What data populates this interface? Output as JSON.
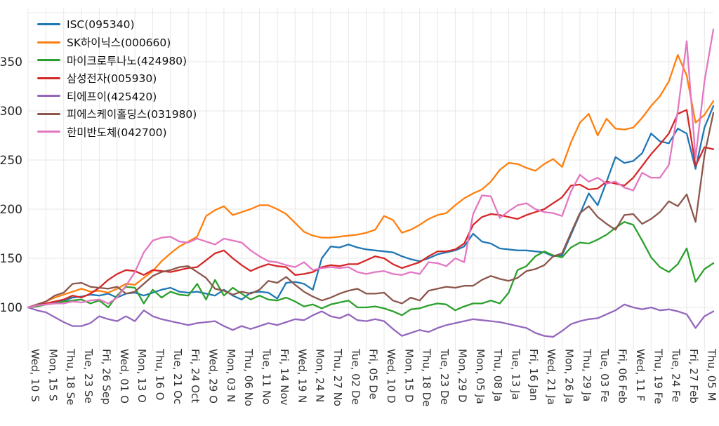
{
  "figure": {
    "background": "#ffffff",
    "description": "Indexed stock performance comparison line chart (base=100)"
  },
  "chart_data": {
    "type": "line",
    "title": "",
    "xlabel": "",
    "ylabel": "",
    "grid": true,
    "legend_position": "upper-left",
    "y_ticks": [
      100,
      150,
      200,
      250,
      300,
      350
    ],
    "ylim": [
      56,
      400
    ],
    "tick_every_n_points": 2,
    "x_tick_labels": [
      "Wed, 10 S",
      "Mon, 15 S",
      "Thu, 18 Se",
      "Tue, 23 Se",
      "Fri, 26 Sep",
      "Wed, 01 O",
      "Mon, 13 O",
      "Thu, 16 O",
      "Tue, 21 Oc",
      "Fri, 24 Oct",
      "Wed, 29 O",
      "Mon, 03 N",
      "Thu, 06 No",
      "Tue, 11 No",
      "Fri, 14 Nov",
      "Wed, 19 N",
      "Mon, 24 N",
      "Thu, 27 No",
      "Tue, 02 De",
      "Fri, 05 De",
      "Wed, 10 D",
      "Mon, 15 D",
      "Thu, 18 De",
      "Tue, 23 De",
      "Mon, 29 D",
      "Mon, 05 Ja",
      "Thu, 08 Ja",
      "Tue, 13 Ja",
      "Fri, 16 Jan",
      "Wed, 21 Ja",
      "Mon, 26 Ja",
      "Thu, 29 Ja",
      "Tue, 03 Fe",
      "Fri, 06 Feb",
      "Wed, 11 F",
      "Thu, 19 Fe",
      "Tue, 24 Fe",
      "Fri, 27 Feb",
      "Thu, 05 M"
    ],
    "series": [
      {
        "name": "ISC(095340)",
        "color": "#1f77b4",
        "values": [
          100,
          101,
          103,
          105,
          107,
          110,
          111,
          113,
          112,
          114,
          110,
          114,
          115,
          112,
          115,
          118,
          120,
          116,
          115,
          116,
          114,
          112,
          118,
          112,
          108,
          115,
          116,
          115,
          109,
          125,
          126,
          124,
          118,
          150,
          162,
          161,
          164,
          161,
          159,
          158,
          157,
          156,
          152,
          149,
          147,
          150,
          154,
          156,
          158,
          162,
          175,
          167,
          165,
          160,
          159,
          158,
          158,
          157,
          156,
          152,
          153,
          174,
          195,
          216,
          204,
          228,
          253,
          247,
          249,
          257,
          277,
          269,
          267,
          282,
          277,
          241,
          283,
          305
        ]
      },
      {
        "name": "SK하이닉스(000660)",
        "color": "#ff7f0e",
        "values": [
          100,
          103,
          106,
          110,
          113,
          116,
          119,
          116,
          117,
          115,
          119,
          124,
          123,
          130,
          137,
          147,
          155,
          162,
          167,
          172,
          193,
          199,
          203,
          194,
          197,
          200,
          204,
          204,
          200,
          195,
          186,
          177,
          173,
          171,
          171,
          172,
          173,
          174,
          176,
          179,
          193,
          189,
          176,
          179,
          184,
          190,
          194,
          196,
          204,
          211,
          216,
          220,
          228,
          240,
          247,
          246,
          242,
          239,
          246,
          251,
          243,
          268,
          288,
          297,
          275,
          292,
          282,
          281,
          283,
          293,
          305,
          315,
          330,
          357,
          336,
          288,
          296,
          310
        ]
      },
      {
        "name": "마이크로투나노(424980)",
        "color": "#2ca02c",
        "values": [
          100,
          101,
          103,
          104,
          106,
          107,
          108,
          104,
          107,
          100,
          112,
          121,
          120,
          104,
          118,
          110,
          116,
          113,
          112,
          124,
          108,
          128,
          112,
          120,
          114,
          108,
          112,
          108,
          107,
          110,
          106,
          101,
          103,
          99,
          103,
          105,
          107,
          100,
          100,
          101,
          99,
          96,
          92,
          98,
          99,
          102,
          104,
          103,
          97,
          101,
          104,
          104,
          107,
          104,
          115,
          138,
          142,
          152,
          157,
          153,
          151,
          161,
          166,
          165,
          169,
          174,
          181,
          187,
          184,
          168,
          151,
          141,
          136,
          144,
          160,
          126,
          139,
          145
        ]
      },
      {
        "name": "삼성전자(005930)",
        "color": "#d62728",
        "values": [
          100,
          102,
          104,
          106,
          108,
          112,
          110,
          114,
          120,
          128,
          134,
          138,
          137,
          133,
          138,
          137,
          136,
          138,
          140,
          141,
          148,
          155,
          158,
          150,
          143,
          137,
          141,
          144,
          142,
          141,
          133,
          134,
          136,
          141,
          143,
          142,
          144,
          144,
          148,
          152,
          150,
          144,
          140,
          143,
          146,
          152,
          157,
          157,
          159,
          165,
          184,
          192,
          195,
          194,
          192,
          190,
          194,
          197,
          200,
          206,
          212,
          224,
          225,
          220,
          221,
          228,
          226,
          224,
          232,
          244,
          256,
          266,
          277,
          297,
          301,
          244,
          263,
          261
        ]
      },
      {
        "name": "티에프이(425420)",
        "color": "#9467bd",
        "values": [
          100,
          97,
          95,
          90,
          85,
          81,
          81,
          84,
          91,
          88,
          86,
          91,
          86,
          97,
          91,
          88,
          86,
          84,
          82,
          84,
          85,
          86,
          81,
          77,
          81,
          78,
          81,
          84,
          82,
          85,
          88,
          87,
          92,
          96,
          91,
          89,
          93,
          87,
          86,
          88,
          86,
          78,
          71,
          74,
          77,
          75,
          79,
          82,
          84,
          86,
          88,
          87,
          86,
          85,
          83,
          81,
          79,
          74,
          71,
          70,
          76,
          83,
          86,
          88,
          89,
          93,
          97,
          103,
          100,
          98,
          100,
          97,
          98,
          96,
          93,
          79,
          91,
          96
        ]
      },
      {
        "name": "피에스케이홀딩스(031980)",
        "color": "#8c564b",
        "values": [
          100,
          103,
          106,
          112,
          115,
          124,
          125,
          121,
          120,
          119,
          121,
          114,
          116,
          124,
          132,
          136,
          138,
          141,
          142,
          136,
          130,
          119,
          117,
          113,
          116,
          114,
          118,
          127,
          125,
          131,
          123,
          116,
          111,
          107,
          110,
          114,
          117,
          119,
          114,
          114,
          115,
          107,
          104,
          110,
          107,
          117,
          119,
          121,
          120,
          122,
          122,
          128,
          132,
          129,
          127,
          130,
          137,
          139,
          143,
          152,
          155,
          176,
          196,
          203,
          192,
          185,
          179,
          194,
          195,
          185,
          190,
          197,
          208,
          203,
          215,
          187,
          255,
          298
        ]
      },
      {
        "name": "한미반도체(042700)",
        "color": "#e377c2",
        "values": [
          100,
          102,
          103,
          104,
          104,
          106,
          105,
          107,
          108,
          104,
          110,
          122,
          136,
          156,
          168,
          171,
          172,
          167,
          166,
          170,
          167,
          164,
          170,
          168,
          166,
          158,
          152,
          147,
          146,
          143,
          141,
          146,
          138,
          140,
          141,
          140,
          141,
          136,
          134,
          136,
          137,
          134,
          133,
          136,
          134,
          146,
          145,
          142,
          150,
          146,
          195,
          214,
          213,
          191,
          198,
          204,
          206,
          200,
          197,
          196,
          193,
          218,
          235,
          228,
          232,
          226,
          228,
          222,
          219,
          237,
          232,
          232,
          245,
          300,
          371,
          252,
          330,
          383
        ]
      }
    ]
  }
}
